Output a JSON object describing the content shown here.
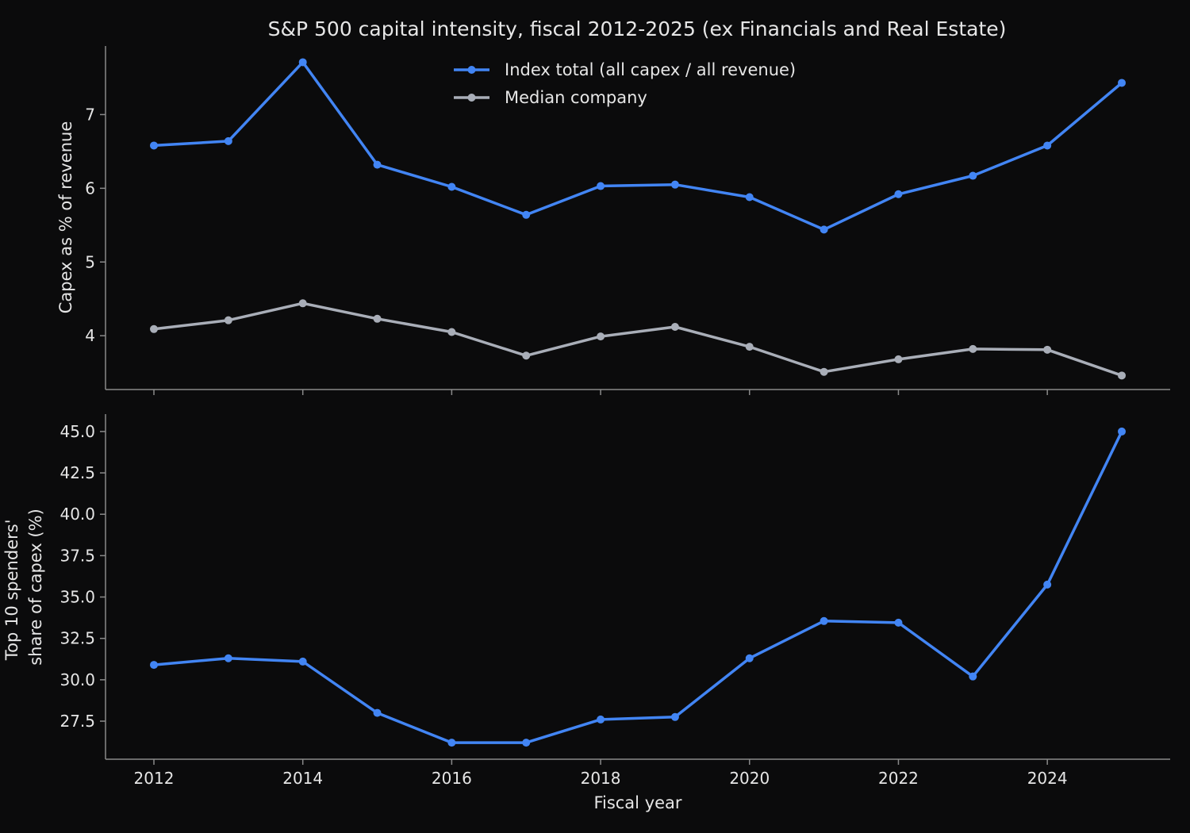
{
  "title": "S&P 500 capital intensity, fiscal 2012-2025 (ex Financials and Real Estate)",
  "colors": {
    "background": "#0b0b0c",
    "index_total": "#4285f4",
    "median": "#a9aeb8",
    "axis": "#8a8a8a",
    "text": "#e6e6e6"
  },
  "chart_data": [
    {
      "type": "line",
      "panel": "top",
      "ylabel": "Capex as % of revenue",
      "xlabel": "",
      "x": [
        2012,
        2013,
        2014,
        2015,
        2016,
        2017,
        2018,
        2019,
        2020,
        2021,
        2022,
        2023,
        2024,
        2025
      ],
      "xlim": [
        2011.35,
        2025.65
      ],
      "ylim": [
        3.27,
        7.93
      ],
      "yticks": [
        4,
        5,
        6,
        7
      ],
      "ytick_labels": [
        "4",
        "5",
        "6",
        "7"
      ],
      "legend": {
        "placement": "top-center"
      },
      "series": [
        {
          "name": "Index total (all capex / all revenue)",
          "color": "#4285f4",
          "values": [
            6.58,
            6.64,
            7.71,
            6.32,
            6.02,
            5.64,
            6.03,
            6.05,
            5.88,
            5.44,
            5.92,
            6.17,
            6.58,
            7.43
          ]
        },
        {
          "name": "Median company",
          "color": "#a9aeb8",
          "values": [
            4.09,
            4.21,
            4.44,
            4.23,
            4.05,
            3.73,
            3.99,
            4.12,
            3.85,
            3.51,
            3.68,
            3.82,
            3.81,
            3.46
          ]
        }
      ]
    },
    {
      "type": "line",
      "panel": "bottom",
      "ylabel": "Top 10 spenders'\nshare of capex (%)",
      "xlabel": "Fiscal year",
      "x": [
        2012,
        2013,
        2014,
        2015,
        2016,
        2017,
        2018,
        2019,
        2020,
        2021,
        2022,
        2023,
        2024,
        2025
      ],
      "xlim": [
        2011.35,
        2025.65
      ],
      "ylim": [
        25.2,
        46.05
      ],
      "xticks": [
        2012,
        2014,
        2016,
        2018,
        2020,
        2022,
        2024
      ],
      "xtick_labels": [
        "2012",
        "2014",
        "2016",
        "2018",
        "2020",
        "2022",
        "2024"
      ],
      "yticks": [
        27.5,
        30.0,
        32.5,
        35.0,
        37.5,
        40.0,
        42.5,
        45.0
      ],
      "ytick_labels": [
        "27.5",
        "30.0",
        "32.5",
        "35.0",
        "37.5",
        "40.0",
        "42.5",
        "45.0"
      ],
      "series": [
        {
          "color": "#4285f4",
          "values": [
            30.9,
            31.3,
            31.1,
            28.0,
            26.2,
            26.2,
            27.6,
            27.75,
            31.3,
            33.55,
            33.45,
            30.2,
            35.75,
            45.0
          ]
        }
      ]
    }
  ]
}
